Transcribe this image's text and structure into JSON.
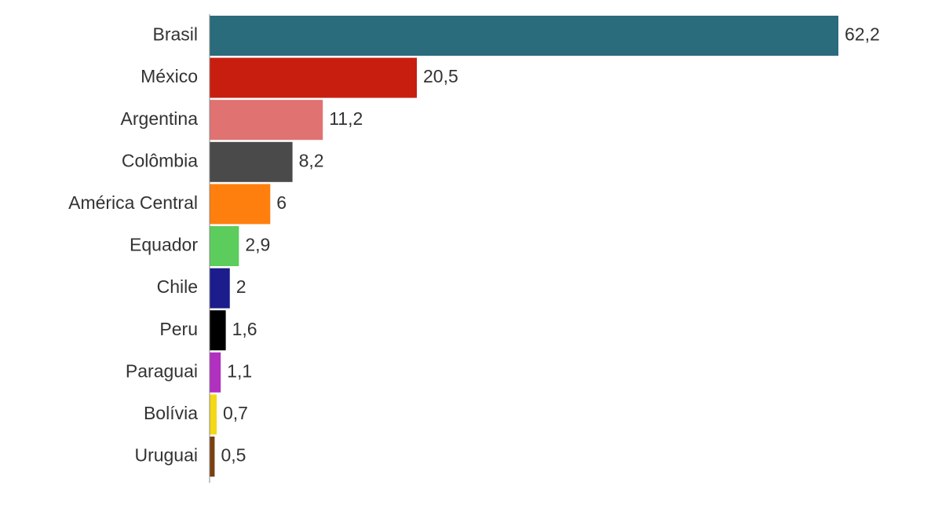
{
  "chart_data": {
    "type": "hbar",
    "categories": [
      "Brasil",
      "México",
      "Argentina",
      "Colômbia",
      "América Central",
      "Equador",
      "Chile",
      "Peru",
      "Paraguai",
      "Bolívia",
      "Uruguai"
    ],
    "values": [
      62.2,
      20.5,
      11.2,
      8.2,
      6,
      2.9,
      2,
      1.6,
      1.1,
      0.7,
      0.5
    ],
    "value_labels": [
      "62,2",
      "20,5",
      "11,2",
      "8,2",
      "6",
      "2,9",
      "2",
      "1,6",
      "1,1",
      "0,7",
      "0,5"
    ],
    "colors": [
      "#2a6b7c",
      "#c81e10",
      "#e07272",
      "#4a4a4a",
      "#ff7f0e",
      "#5ccc5c",
      "#1c1c8c",
      "#000000",
      "#b030c0",
      "#f5d815",
      "#7a4010"
    ]
  }
}
